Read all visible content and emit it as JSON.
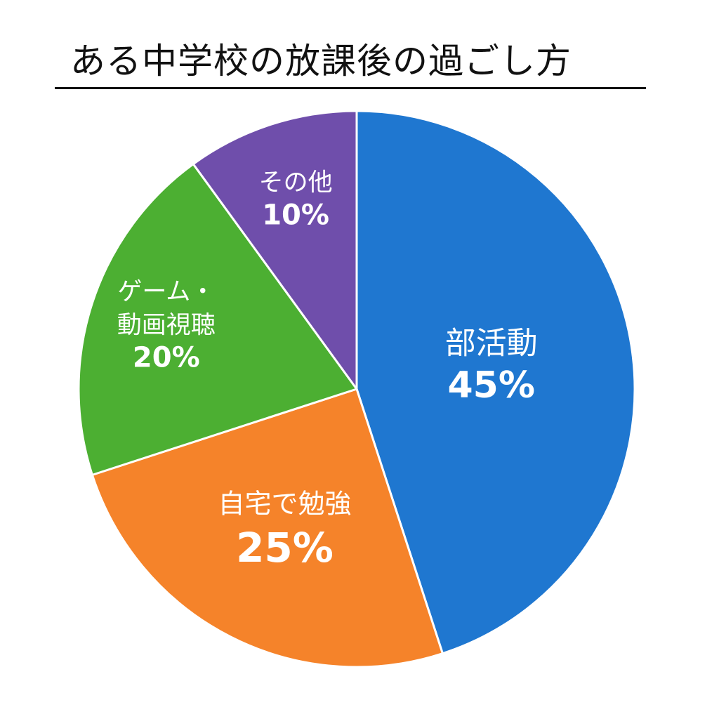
{
  "title": "ある中学校の放課後の過ごし方",
  "chart_data": {
    "type": "pie",
    "title": "ある中学校の放課後の過ごし方",
    "slices": [
      {
        "lines": [
          "部活動"
        ],
        "value": 45,
        "value_label": "45%",
        "color": "#1f77d0"
      },
      {
        "lines": [
          "自宅で勉強"
        ],
        "value": 25,
        "value_label": "25%",
        "color": "#f5832a"
      },
      {
        "lines": [
          "ゲーム・",
          "動画視聴"
        ],
        "value": 20,
        "value_label": "20%",
        "color": "#4caf32"
      },
      {
        "lines": [
          "その他"
        ],
        "value": 10,
        "value_label": "10%",
        "color": "#6f4eab"
      }
    ],
    "start_angle": "12 o'clock",
    "direction": "clockwise",
    "legend": "none"
  }
}
